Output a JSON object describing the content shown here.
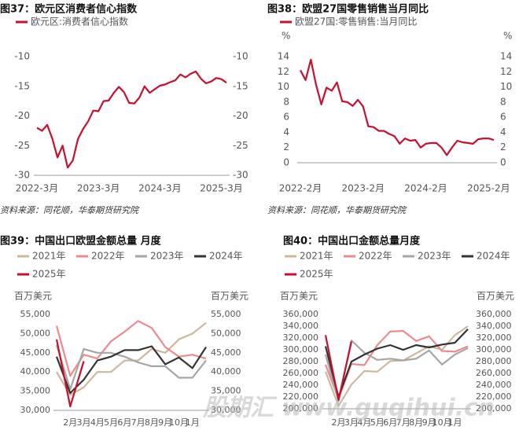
{
  "chart_data": [
    {
      "type": "line",
      "title": "图37：欧元区消费者信心指数",
      "categories": [
        "2022-3月",
        null,
        null,
        null,
        null,
        null,
        null,
        null,
        null,
        null,
        null,
        null,
        "2023-3月",
        null,
        null,
        null,
        null,
        null,
        null,
        null,
        null,
        null,
        null,
        null,
        "2024-3月",
        null,
        null,
        null,
        null,
        null,
        null,
        null,
        null,
        null,
        null,
        null,
        "2025-3月",
        null
      ],
      "series": [
        {
          "name": "欧元区:消费者信心指数",
          "color": "#c8102e",
          "values": [
            -22.0,
            -22.5,
            -21.5,
            -23.8,
            -27.0,
            -25.0,
            -28.7,
            -27.5,
            -23.9,
            -22.2,
            -20.9,
            -19.1,
            -19.2,
            -17.5,
            -17.4,
            -16.1,
            -15.1,
            -16.0,
            -17.8,
            -17.9,
            -16.9,
            -15.0,
            -16.1,
            -15.5,
            -14.9,
            -14.7,
            -14.3,
            -14.0,
            -13.0,
            -13.5,
            -12.9,
            -12.5,
            -13.7,
            -14.5,
            -14.2,
            -13.6,
            -13.8,
            -14.4
          ]
        }
      ],
      "ylim": [
        -30,
        -10
      ],
      "yticks": [
        -30,
        -25,
        -20,
        -15,
        -10
      ]
    },
    {
      "type": "line",
      "title": "图38：欧盟27国零售销售当月同比",
      "y_label": "%",
      "categories": [
        "2022-2月",
        null,
        null,
        null,
        null,
        null,
        null,
        null,
        null,
        null,
        null,
        null,
        "2023-2月",
        null,
        null,
        null,
        null,
        null,
        null,
        null,
        null,
        null,
        null,
        null,
        "2024-2月",
        null,
        null,
        null,
        null,
        null,
        null,
        null,
        null,
        null,
        null,
        null,
        "2025-2月",
        null
      ],
      "series": [
        {
          "name": "欧盟27国:零售销售:当月同比",
          "color": "#c8102e",
          "values": [
            12.2,
            10.9,
            13.6,
            10.3,
            7.7,
            9.9,
            9.5,
            10.6,
            8.1,
            8.0,
            7.5,
            8.3,
            7.4,
            4.8,
            4.7,
            4.2,
            4.2,
            3.8,
            3.5,
            2.5,
            3.2,
            2.9,
            3.0,
            2.0,
            2.5,
            2.6,
            2.6,
            2.0,
            1.0,
            2.0,
            2.9,
            2.7,
            2.6,
            2.5,
            3.1,
            3.2,
            3.2,
            3.0
          ]
        }
      ],
      "ylim": [
        0,
        14
      ],
      "yticks": [
        0,
        2,
        4,
        6,
        8,
        10,
        12,
        14
      ]
    },
    {
      "type": "line",
      "title": "图39：中国出口欧盟金额总量 月度",
      "y_label": "百万美元",
      "categories": [
        null,
        "2月",
        "3月",
        "4月",
        "5月",
        "6月",
        "7月",
        "8月",
        "9月",
        "10月",
        "1月",
        null
      ],
      "series": [
        {
          "name": "2021年",
          "color": "#cdb89c",
          "values": [
            40000,
            34000,
            36000,
            40000,
            40000,
            43000,
            43000,
            46000,
            45000,
            48500,
            50000,
            52800
          ]
        },
        {
          "name": "2022年",
          "color": "#ee8a8f",
          "values": [
            52000,
            39000,
            44500,
            43500,
            48000,
            50500,
            53300,
            51500,
            46500,
            44000,
            44500,
            43500
          ]
        },
        {
          "name": "2023年",
          "color": "#a6a6a6",
          "values": [
            47000,
            35500,
            46000,
            45000,
            45000,
            44000,
            42500,
            41500,
            41500,
            38500,
            38500,
            43000
          ]
        },
        {
          "name": "2024年",
          "color": "#333333",
          "values": [
            44000,
            34500,
            38000,
            43000,
            44000,
            45700,
            45700,
            46700,
            42000,
            43800,
            41000,
            46500
          ]
        },
        {
          "name": "2025年",
          "color": "#c8102e",
          "values": [
            48500,
            31000,
            42800,
            null,
            null,
            null,
            null,
            null,
            null,
            null,
            null,
            null
          ]
        }
      ],
      "ylim": [
        30000,
        55000
      ],
      "yticks": [
        {
          "value": 30000,
          "label": "30,000"
        },
        {
          "value": 35000,
          "label": "35,000"
        },
        {
          "value": 40000,
          "label": "40,000"
        },
        {
          "value": 45000,
          "label": "45,000"
        },
        {
          "value": 50000,
          "label": "50,000"
        },
        {
          "value": 55000,
          "label": "55,000"
        }
      ]
    },
    {
      "type": "line",
      "title": "图40：中国出口金额总量月度",
      "y_label": "百万美元",
      "categories": [
        null,
        "2月",
        "3月",
        "4月",
        "5月",
        "6月",
        "7月",
        "8月",
        "9月",
        "10月",
        "1月",
        null
      ],
      "series": [
        {
          "name": "2021年",
          "color": "#cdb89c",
          "values": [
            263000,
            205000,
            241000,
            264000,
            263000,
            281000,
            282000,
            294000,
            306000,
            300000,
            325000,
            340000
          ]
        },
        {
          "name": "2022年",
          "color": "#ee8a8f",
          "values": [
            275000,
            217000,
            276000,
            274000,
            308000,
            331000,
            332000,
            315000,
            323000,
            298000,
            297000,
            306000
          ]
        },
        {
          "name": "2023年",
          "color": "#a6a6a6",
          "values": [
            292000,
            213000,
            316000,
            295000,
            283000,
            285000,
            282000,
            285000,
            299000,
            275000,
            292000,
            303000
          ]
        },
        {
          "name": "2024年",
          "color": "#333333",
          "values": [
            306000,
            220000,
            280000,
            292000,
            302000,
            308000,
            300000,
            308000,
            304000,
            309000,
            312000,
            335000
          ]
        },
        {
          "name": "2025年",
          "color": "#c8102e",
          "values": [
            325000,
            215000,
            314000,
            null,
            null,
            null,
            null,
            null,
            null,
            null,
            null,
            null
          ]
        }
      ],
      "ylim": [
        200000,
        360000
      ],
      "yticks": [
        {
          "value": 200000,
          "label": "200,000"
        },
        {
          "value": 220000,
          "label": "220,000"
        },
        {
          "value": 240000,
          "label": "240,000"
        },
        {
          "value": 260000,
          "label": "260,000"
        },
        {
          "value": 280000,
          "label": "280,000"
        },
        {
          "value": 300000,
          "label": "300,000"
        },
        {
          "value": 320000,
          "label": "320,000"
        },
        {
          "value": 340000,
          "label": "340,000"
        },
        {
          "value": 360000,
          "label": "360,000"
        }
      ]
    }
  ],
  "source": "资料来源：同花顺，华泰期货研究院",
  "watermark": "股期汇 www.guqihui.cn"
}
